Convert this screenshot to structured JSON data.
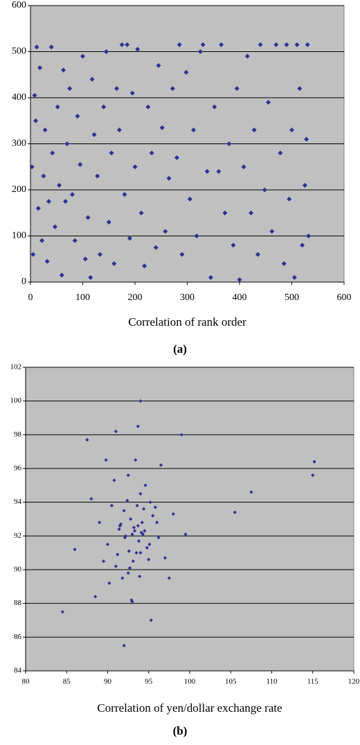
{
  "chart_data": [
    {
      "type": "scatter",
      "xlabel": "Correlation of rank order",
      "caption": "(a)",
      "color": "#2e3192",
      "grid": true,
      "xlim": [
        0,
        600
      ],
      "ylim": [
        0,
        600
      ],
      "xticks": [
        0,
        100,
        200,
        300,
        400,
        500,
        600
      ],
      "yticks": [
        0,
        100,
        200,
        300,
        400,
        500,
        600
      ],
      "x": [
        3,
        5,
        8,
        10,
        12,
        15,
        18,
        22,
        25,
        28,
        32,
        35,
        40,
        42,
        47,
        52,
        55,
        60,
        63,
        67,
        70,
        75,
        80,
        85,
        90,
        95,
        100,
        105,
        110,
        115,
        118,
        122,
        128,
        133,
        140,
        145,
        150,
        155,
        160,
        165,
        170,
        175,
        180,
        185,
        190,
        195,
        200,
        205,
        212,
        218,
        225,
        232,
        240,
        245,
        252,
        258,
        265,
        272,
        280,
        285,
        290,
        298,
        305,
        312,
        318,
        325,
        330,
        338,
        345,
        352,
        360,
        365,
        372,
        380,
        388,
        395,
        400,
        408,
        415,
        422,
        428,
        435,
        440,
        448,
        455,
        462,
        470,
        478,
        485,
        490,
        495,
        500,
        505,
        510,
        515,
        520,
        525,
        528,
        530,
        532
      ],
      "y": [
        250,
        60,
        405,
        350,
        510,
        160,
        465,
        90,
        230,
        330,
        45,
        175,
        510,
        280,
        120,
        380,
        210,
        15,
        460,
        175,
        300,
        420,
        190,
        90,
        360,
        255,
        490,
        50,
        140,
        10,
        440,
        320,
        230,
        60,
        380,
        500,
        130,
        280,
        40,
        420,
        330,
        515,
        190,
        515,
        95,
        410,
        250,
        505,
        150,
        35,
        380,
        280,
        75,
        470,
        335,
        110,
        225,
        420,
        270,
        515,
        60,
        455,
        180,
        330,
        100,
        500,
        515,
        240,
        10,
        380,
        240,
        515,
        150,
        300,
        80,
        420,
        5,
        250,
        490,
        150,
        330,
        60,
        515,
        200,
        390,
        110,
        515,
        280,
        40,
        515,
        180,
        330,
        10,
        515,
        420,
        80,
        210,
        310,
        515,
        100
      ]
    },
    {
      "type": "scatter",
      "xlabel": "Correlation of yen/dollar exchange rate",
      "caption": "(b)",
      "color": "#2e3192",
      "grid": true,
      "xlim": [
        80,
        120
      ],
      "ylim": [
        84,
        102
      ],
      "xticks": [
        80,
        85,
        90,
        95,
        100,
        105,
        110,
        115,
        120
      ],
      "yticks": [
        84,
        86,
        88,
        90,
        92,
        94,
        96,
        98,
        100,
        102
      ],
      "x": [
        84.5,
        92,
        94,
        87.5,
        99,
        105.5,
        107.5,
        115,
        115.2,
        95.3,
        86,
        91,
        93.7,
        88,
        89,
        90,
        90.5,
        91,
        91.5,
        92,
        92.5,
        93,
        93.5,
        94,
        94.5,
        95,
        95.5,
        96,
        96.5,
        97,
        92.2,
        92.8,
        93.2,
        93.8,
        94.2,
        94.8,
        93.1,
        93.6,
        94.1,
        92.6,
        91.8,
        92.4,
        93.4,
        94.4,
        95.2,
        91.2,
        90.8,
        92.9,
        93.9,
        94.6,
        89.5,
        90.2,
        96.2,
        97.5,
        98,
        99.5,
        88.5,
        89.8,
        91.6,
        92.1,
        93.3,
        94.3,
        95.1,
        95.8,
        93,
        92.5,
        94,
        91.4,
        93.7,
        92.7
      ],
      "y": [
        87.5,
        85.5,
        100,
        97.7,
        98,
        93.4,
        94.6,
        95.6,
        96.4,
        87,
        91.2,
        98.2,
        98.5,
        94.2,
        92.8,
        91.5,
        93.8,
        90.2,
        92.6,
        93.5,
        89.8,
        92.1,
        91,
        94.5,
        92.3,
        90.6,
        93.2,
        92.8,
        96.2,
        90.7,
        92,
        93,
        92.5,
        91.7,
        92.8,
        91.3,
        90.5,
        93.8,
        92.2,
        91.1,
        89.5,
        94.1,
        96.5,
        93.6,
        94,
        90.9,
        95.3,
        88.2,
        89.6,
        95,
        90.5,
        89.2,
        91.9,
        89.5,
        93.3,
        92.1,
        88.4,
        96.5,
        92.7,
        91.9,
        92.3,
        92.1,
        91.5,
        93.7,
        88.1,
        95.6,
        91,
        92.4,
        92.6,
        90.1
      ]
    }
  ]
}
